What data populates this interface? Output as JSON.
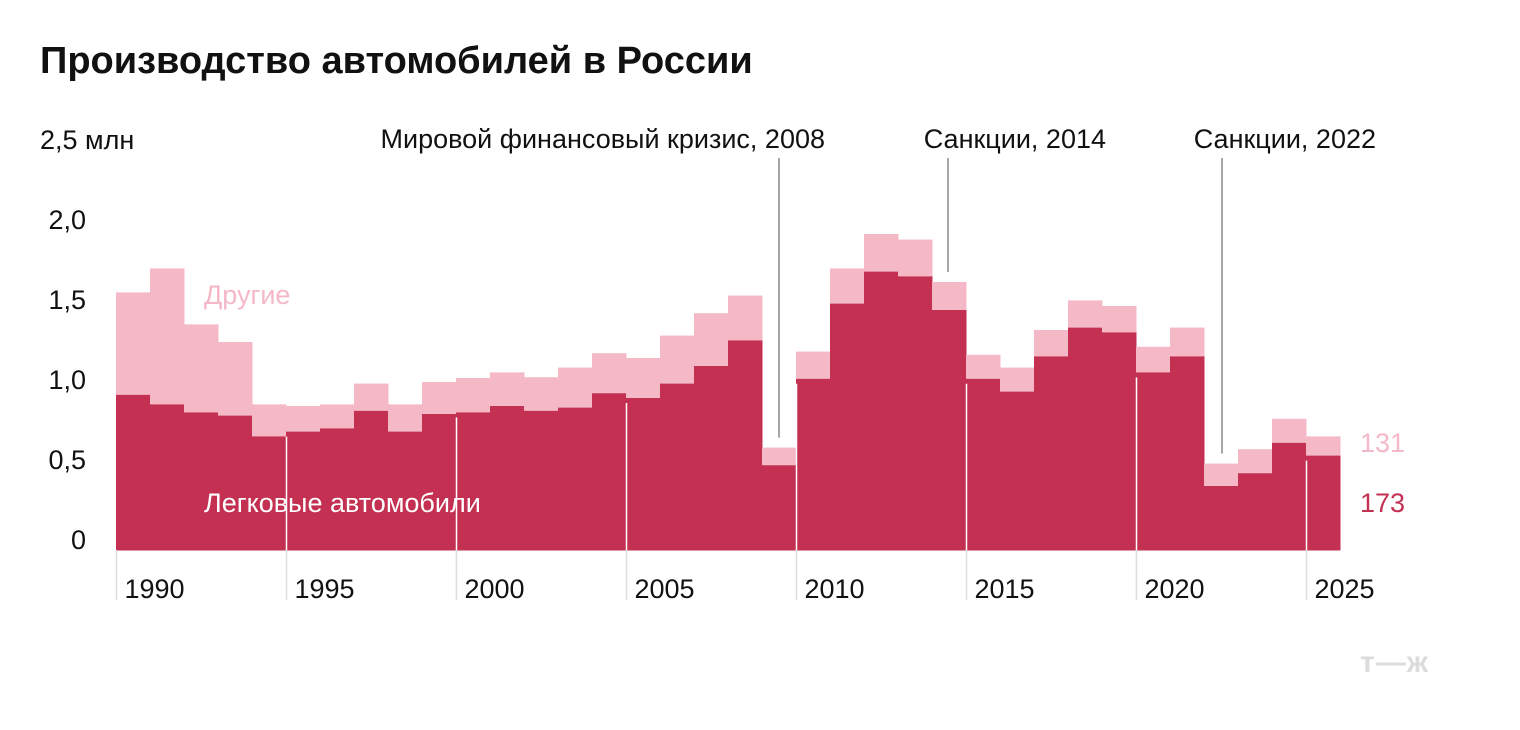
{
  "title": "Производство автомобилей в России",
  "chart_data": {
    "type": "bar",
    "stacked": true,
    "title": "Производство автомобилей в России",
    "ylabel": "",
    "ylim": [
      0,
      2.5
    ],
    "y_ticks": [
      {
        "value": 0,
        "label": "0"
      },
      {
        "value": 0.5,
        "label": "0,5"
      },
      {
        "value": 1.0,
        "label": "1,0"
      },
      {
        "value": 1.5,
        "label": "1,5"
      },
      {
        "value": 2.0,
        "label": "2,0"
      },
      {
        "value": 2.5,
        "label": "2,5 млн"
      }
    ],
    "x": [
      1990,
      1991,
      1992,
      1993,
      1994,
      1995,
      1996,
      1997,
      1998,
      1999,
      2000,
      2001,
      2002,
      2003,
      2004,
      2005,
      2006,
      2007,
      2008,
      2009,
      2010,
      2011,
      2012,
      2013,
      2014,
      2015,
      2016,
      2017,
      2018,
      2019,
      2020,
      2021,
      2022,
      2023,
      2024,
      2025
    ],
    "x_ticks": [
      "1990",
      "1995",
      "2000",
      "2005",
      "2010",
      "2015",
      "2020",
      "2025"
    ],
    "series": [
      {
        "name": "Легковые автомобили",
        "color": "#c33052",
        "values": [
          0.97,
          0.91,
          0.86,
          0.84,
          0.71,
          0.74,
          0.76,
          0.87,
          0.74,
          0.85,
          0.86,
          0.9,
          0.87,
          0.89,
          0.98,
          0.95,
          1.04,
          1.15,
          1.31,
          0.53,
          1.07,
          1.54,
          1.74,
          1.71,
          1.5,
          1.07,
          0.99,
          1.21,
          1.39,
          1.36,
          1.11,
          1.21,
          0.4,
          0.48,
          0.67,
          0.59
        ]
      },
      {
        "name": "Другие",
        "color": "#f4b8c6",
        "values": [
          0.64,
          0.85,
          0.55,
          0.46,
          0.2,
          0.16,
          0.15,
          0.17,
          0.17,
          0.2,
          0.215,
          0.21,
          0.21,
          0.25,
          0.25,
          0.25,
          0.3,
          0.33,
          0.28,
          0.11,
          0.17,
          0.22,
          0.235,
          0.23,
          0.175,
          0.15,
          0.15,
          0.165,
          0.17,
          0.165,
          0.16,
          0.18,
          0.14,
          0.15,
          0.15,
          0.12
        ]
      }
    ],
    "end_labels": {
      "other": "131",
      "passenger": "173"
    },
    "annotations": [
      {
        "year": 2008,
        "label": "Мировой финансовый кризис, 2008"
      },
      {
        "year": 2014,
        "label": "Санкции, 2014"
      },
      {
        "year": 2022,
        "label": "Санкции, 2022"
      }
    ],
    "grid": false,
    "legend": "inline"
  },
  "logo": "т—ж"
}
